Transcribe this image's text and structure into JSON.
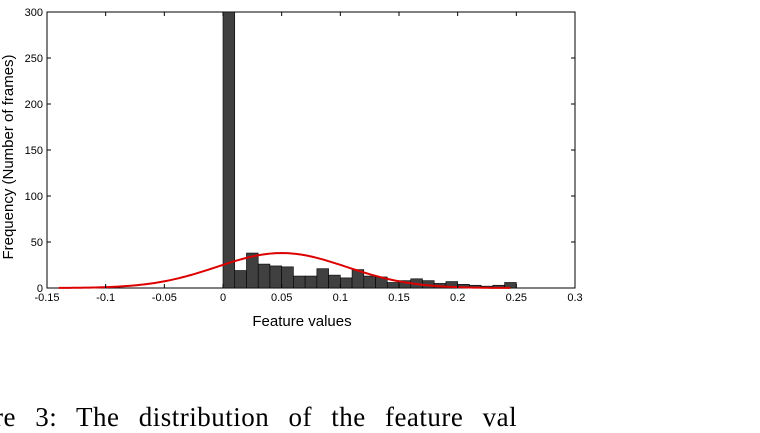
{
  "chart_data": {
    "type": "bar",
    "xlabel": "Feature values",
    "ylabel": "Frequency (Number of frames)",
    "xlim": [
      -0.15,
      0.3
    ],
    "ylim": [
      0,
      300
    ],
    "xticks": [
      -0.15,
      -0.1,
      -0.05,
      0,
      0.05,
      0.1,
      0.15,
      0.2,
      0.25,
      0.3
    ],
    "xtick_labels": [
      "-0.15",
      "-0.1",
      "-0.05",
      "0",
      "0.05",
      "0.1",
      "0.15",
      "0.2",
      "0.25",
      "0.3"
    ],
    "yticks": [
      0,
      50,
      100,
      150,
      200,
      250,
      300
    ],
    "ytick_labels": [
      "0",
      "50",
      "100",
      "150",
      "200",
      "250",
      "300"
    ],
    "grid": false,
    "bin_width": 0.01,
    "bars": [
      {
        "x": 0.005,
        "y": 300
      },
      {
        "x": 0.015,
        "y": 19
      },
      {
        "x": 0.025,
        "y": 38
      },
      {
        "x": 0.035,
        "y": 26
      },
      {
        "x": 0.045,
        "y": 24
      },
      {
        "x": 0.055,
        "y": 23
      },
      {
        "x": 0.065,
        "y": 13
      },
      {
        "x": 0.075,
        "y": 13
      },
      {
        "x": 0.085,
        "y": 21
      },
      {
        "x": 0.095,
        "y": 14
      },
      {
        "x": 0.105,
        "y": 11
      },
      {
        "x": 0.115,
        "y": 20
      },
      {
        "x": 0.125,
        "y": 13
      },
      {
        "x": 0.135,
        "y": 12
      },
      {
        "x": 0.145,
        "y": 6
      },
      {
        "x": 0.155,
        "y": 8
      },
      {
        "x": 0.165,
        "y": 10
      },
      {
        "x": 0.175,
        "y": 8
      },
      {
        "x": 0.185,
        "y": 5
      },
      {
        "x": 0.195,
        "y": 7
      },
      {
        "x": 0.205,
        "y": 4
      },
      {
        "x": 0.215,
        "y": 3
      },
      {
        "x": 0.225,
        "y": 2
      },
      {
        "x": 0.235,
        "y": 3
      },
      {
        "x": 0.245,
        "y": 6
      }
    ],
    "fit_curve": {
      "shape": "gaussian",
      "mean": 0.05,
      "std": 0.055,
      "peak": 38,
      "x_range": [
        -0.14,
        0.245
      ],
      "color": "#dd0000"
    },
    "bar_color": "#404040"
  },
  "caption": {
    "text": "ure 3: The distribution of the feature val"
  }
}
